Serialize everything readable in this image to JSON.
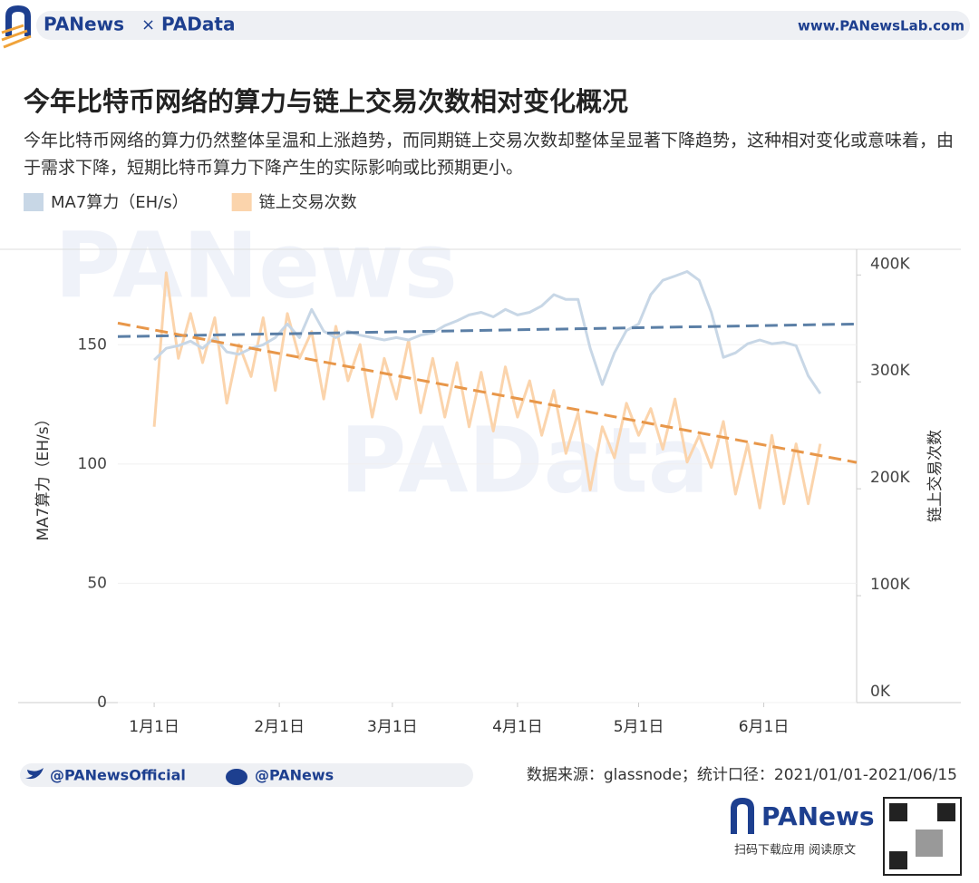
{
  "header": {
    "brand": "PANews",
    "separator": "×",
    "brand2": "PAData",
    "site": "www.PANewsLab.com"
  },
  "chart_data": {
    "type": "line",
    "title": "今年比特币网络的算力与链上交易次数相对变化概况",
    "subtitle": "今年比特币网络的算力仍然整体呈温和上涨趋势，而同期链上交易次数却整体呈显著下降趋势，这种相对变化或意味着，由于需求下降，短期比特币算力下降产生的实际影响或比预期更小。",
    "watermarks": [
      "PANews",
      "PAData"
    ],
    "y_label": "MA7算力（EH/s）",
    "y2_label": "链上交易次数",
    "x": [
      0,
      3,
      6,
      9,
      12,
      15,
      18,
      21,
      24,
      27,
      30,
      33,
      36,
      39,
      42,
      45,
      48,
      51,
      54,
      57,
      60,
      63,
      66,
      69,
      72,
      75,
      78,
      81,
      84,
      87,
      90,
      93,
      96,
      99,
      102,
      105,
      108,
      111,
      114,
      117,
      120,
      123,
      126,
      129,
      132,
      135,
      138,
      141,
      144,
      147,
      150,
      153,
      156,
      159,
      162,
      165
    ],
    "xlim": [
      -9,
      174
    ],
    "xticks": [
      {
        "value": 0,
        "label": "1月1日"
      },
      {
        "value": 31,
        "label": "2月1日"
      },
      {
        "value": 59,
        "label": "3月1日"
      },
      {
        "value": 90,
        "label": "4月1日"
      },
      {
        "value": 120,
        "label": "5月1日"
      },
      {
        "value": 151,
        "label": "6月1日"
      }
    ],
    "ylim": [
      0,
      190
    ],
    "yticks": [
      0,
      50,
      100,
      150
    ],
    "y2lim": [
      0,
      424000
    ],
    "y2ticks": [
      {
        "value": 0,
        "label": "0K"
      },
      {
        "value": 100000,
        "label": "100K"
      },
      {
        "value": 200000,
        "label": "200K"
      },
      {
        "value": 300000,
        "label": "300K"
      },
      {
        "value": 400000,
        "label": "400K"
      }
    ],
    "grid": true,
    "series": [
      {
        "name": "MA7算力（EH/s）",
        "color": "#c8d7e6",
        "axis": "y",
        "values": [
          143.6,
          148.5,
          149.6,
          151.5,
          148.5,
          153,
          147,
          146,
          148.5,
          150,
          153,
          158.7,
          153,
          164.8,
          155.7,
          153,
          155.7,
          154,
          153,
          152,
          153,
          152,
          154,
          155,
          158,
          160,
          162.5,
          163.6,
          161.7,
          164.8,
          162.5,
          163.6,
          166.3,
          171,
          169,
          169,
          148.5,
          133.3,
          146.6,
          156,
          158.7,
          171,
          177,
          178.8,
          180.7,
          177,
          163.6,
          144.7,
          146.6,
          150.4,
          152,
          150.4,
          151,
          149.6,
          137,
          129.5
        ]
      },
      {
        "name": "链上交易次数",
        "color": "#fbd4ac",
        "axis": "y2",
        "values": [
          258000,
          402000,
          322000,
          364000,
          318000,
          360000,
          280000,
          335000,
          305000,
          360000,
          292000,
          364000,
          322000,
          347000,
          284000,
          352000,
          301000,
          335000,
          267000,
          322000,
          284000,
          339000,
          271000,
          322000,
          267000,
          318000,
          258000,
          309000,
          254000,
          314000,
          267000,
          301000,
          250000,
          292000,
          233000,
          271000,
          199000,
          258000,
          229000,
          280000,
          250000,
          275000,
          237000,
          284000,
          225000,
          250000,
          220000,
          263000,
          195000,
          242000,
          182000,
          250000,
          186000,
          242000,
          186000,
          242000
        ]
      }
    ],
    "trend_lines": [
      {
        "color": "#5b7fa6",
        "axis": "y",
        "x": [
          -9,
          174
        ],
        "values": [
          153.4,
          158.7
        ]
      },
      {
        "color": "#e8974a",
        "axis": "y2",
        "x": [
          -9,
          174
        ],
        "values": [
          355000,
          224600
        ]
      }
    ]
  },
  "footer": {
    "twitter": "@PANewsOfficial",
    "weibo": "@PANews",
    "source": "数据来源：glassnode；统计口径：2021/01/01-2021/06/15",
    "brand": "PANews",
    "cta": "扫码下载应用 阅读原文"
  }
}
